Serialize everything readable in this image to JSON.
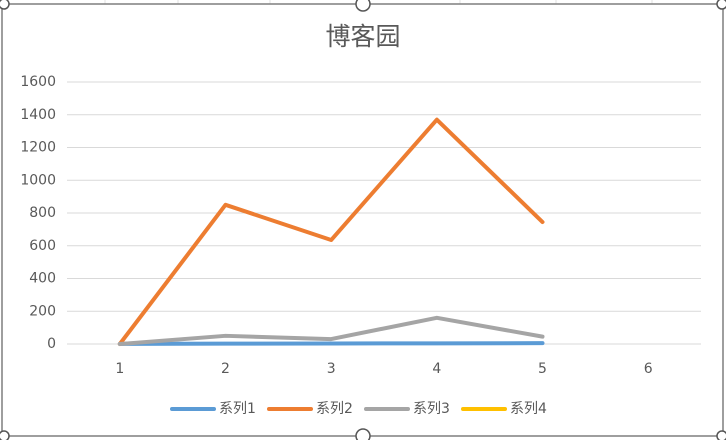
{
  "chart_data": {
    "type": "line",
    "title": "博客园",
    "categories": [
      "1",
      "2",
      "3",
      "4",
      "5",
      "6"
    ],
    "series": [
      {
        "name": "系列1",
        "color": "#5b9bd5",
        "values": [
          1,
          2,
          3,
          4,
          5,
          null
        ]
      },
      {
        "name": "系列2",
        "color": "#ed7d31",
        "values": [
          0,
          850,
          635,
          1370,
          745,
          null
        ]
      },
      {
        "name": "系列3",
        "color": "#a5a5a5",
        "values": [
          0,
          50,
          30,
          160,
          45,
          null
        ]
      },
      {
        "name": "系列4",
        "color": "#ffc000",
        "values": [
          null,
          null,
          null,
          null,
          null,
          null
        ]
      }
    ],
    "ylim": [
      0,
      1600
    ],
    "yticks": [
      0,
      200,
      400,
      600,
      800,
      1000,
      1200,
      1400,
      1600
    ],
    "grid": true,
    "legend": "bottom"
  }
}
